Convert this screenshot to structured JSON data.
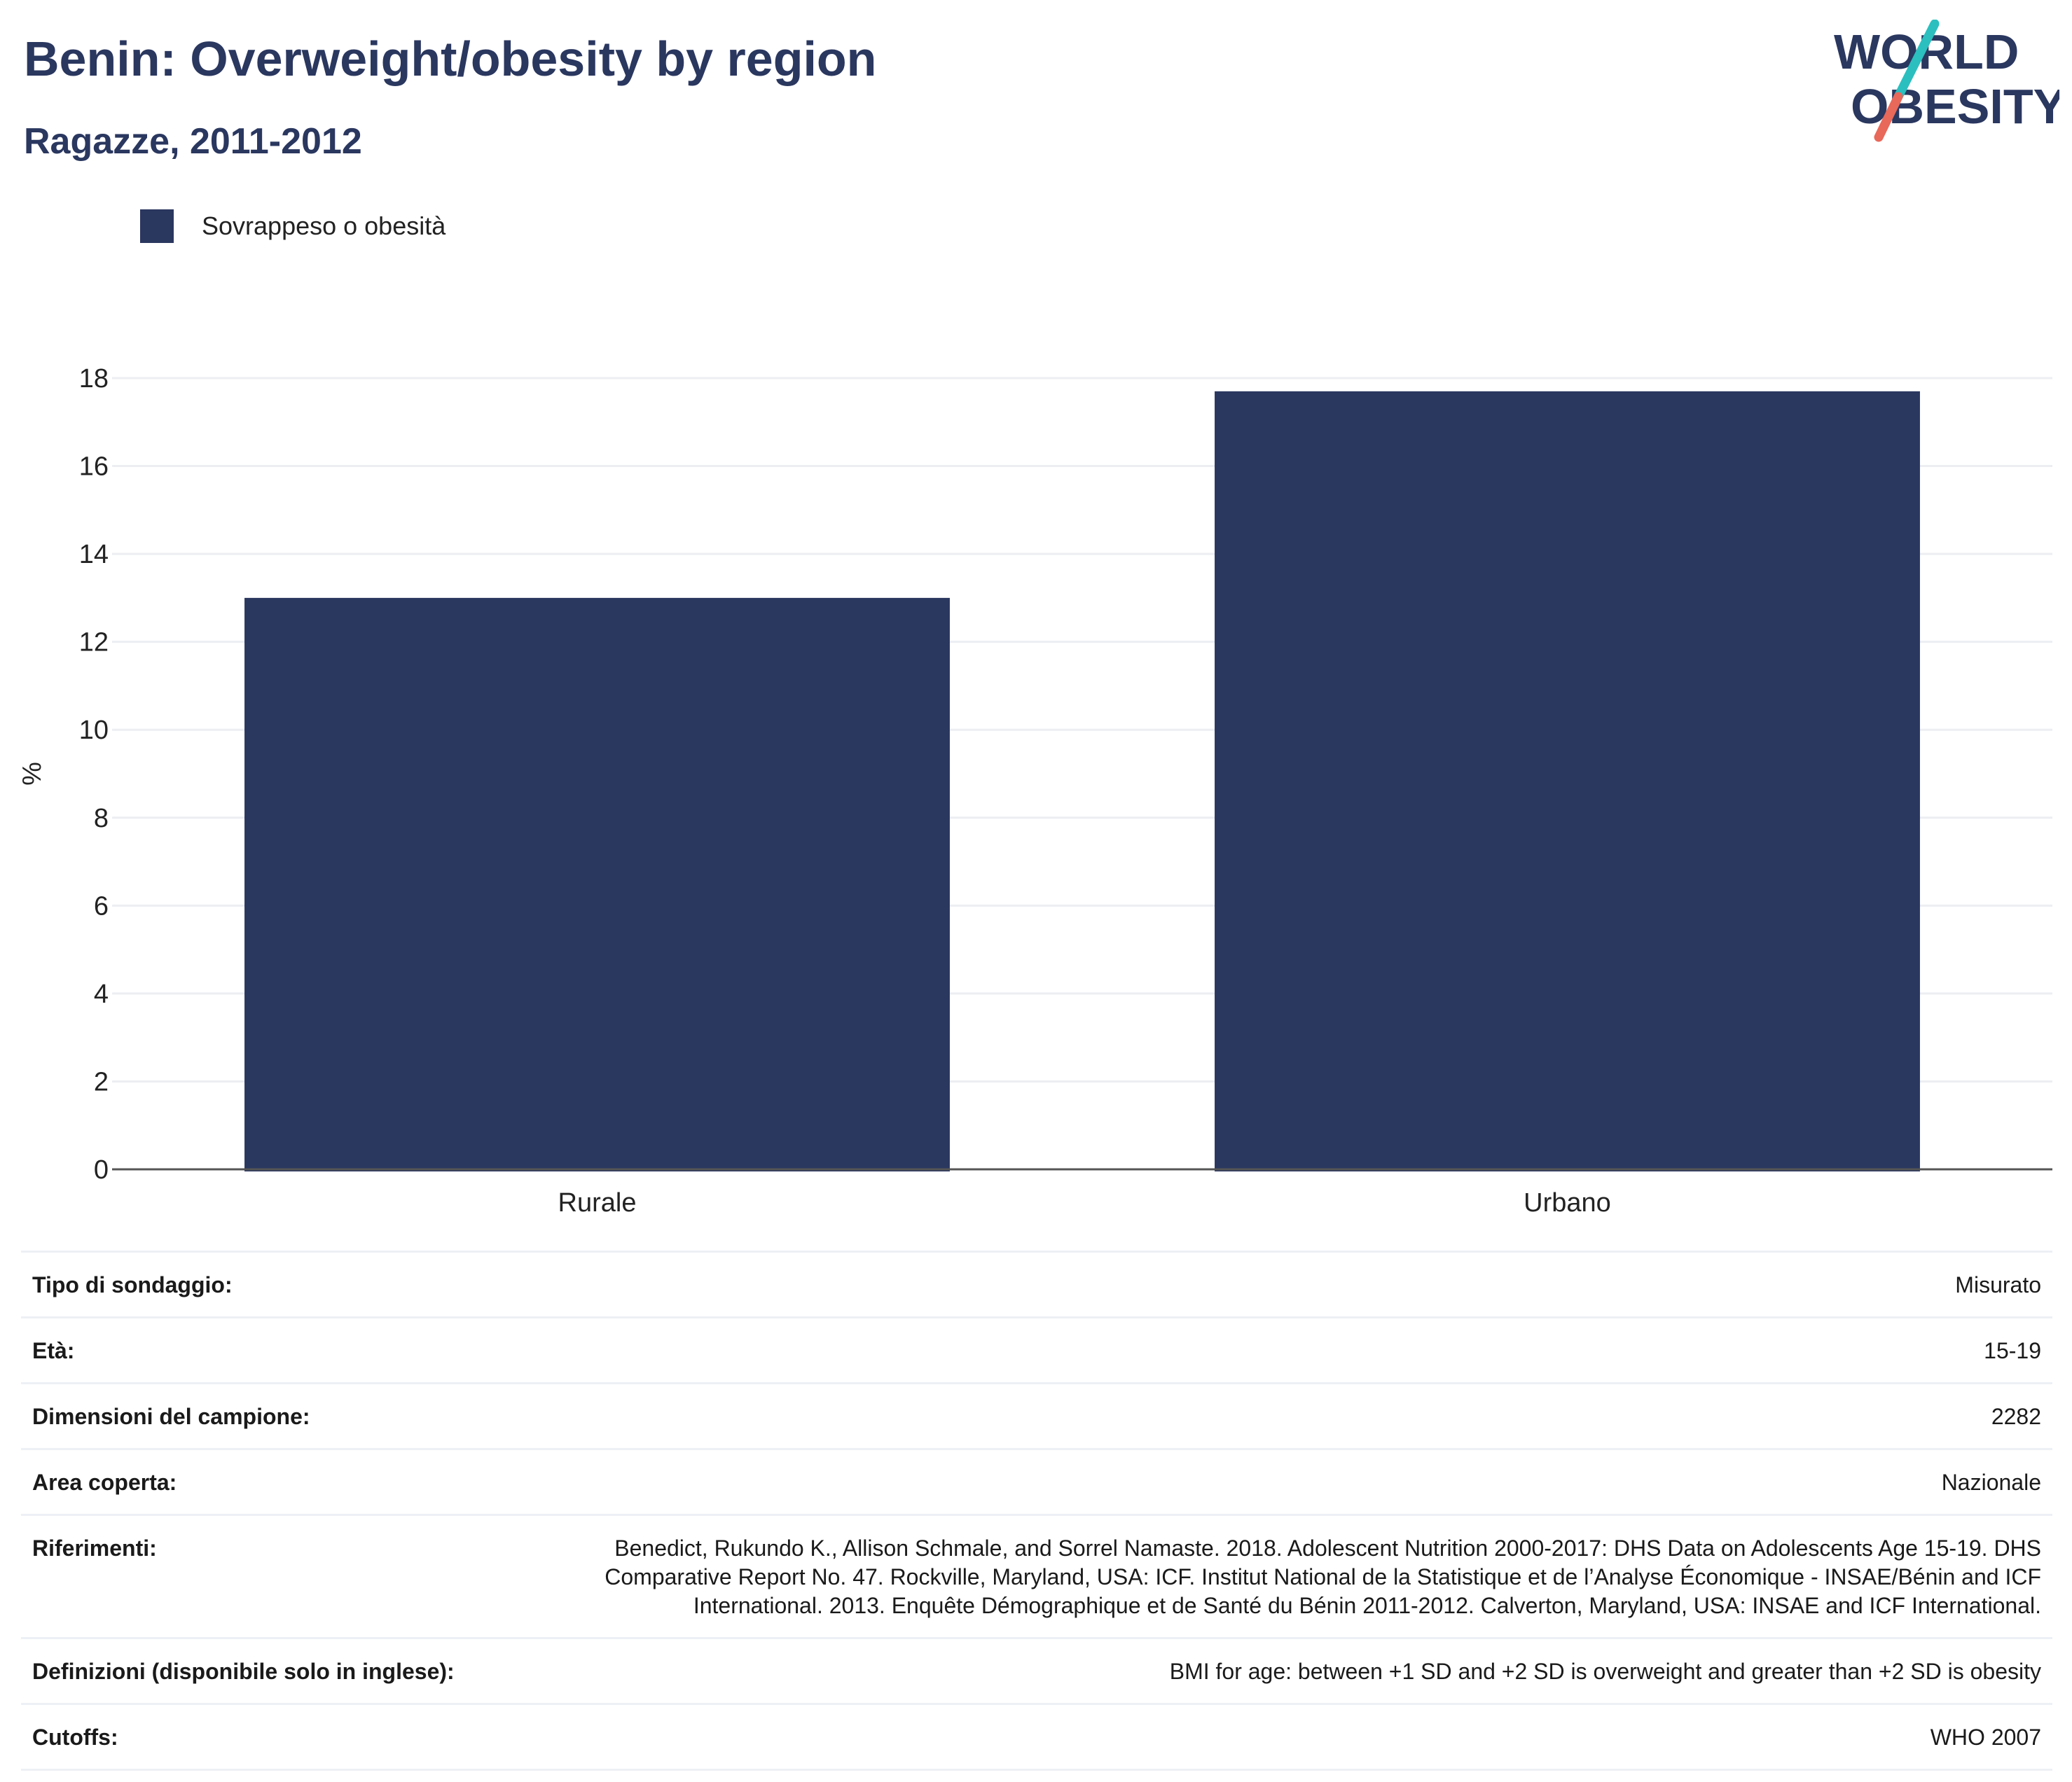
{
  "header": {
    "title": "Benin: Overweight/obesity by region",
    "subtitle": "Ragazze, 2011-2012"
  },
  "logo": {
    "line1": "WORLD",
    "line2": "OBESITY",
    "colors": {
      "text": "#2a375f",
      "slash_top": "#2bbfbf",
      "slash_bottom": "#e8685a"
    }
  },
  "colors": {
    "bar": "#2a375f",
    "grid": "#eceef2",
    "axis": "#555555",
    "tick_text": "#222222"
  },
  "chart_data": {
    "type": "bar",
    "categories": [
      "Rurale",
      "Urbano"
    ],
    "series": [
      {
        "name": "Sovrappeso o obesità",
        "values": [
          13.0,
          17.7
        ]
      }
    ],
    "ylabel": "%",
    "xlabel": "",
    "ylim": [
      0,
      18
    ],
    "yticks": [
      0,
      2,
      4,
      6,
      8,
      10,
      12,
      14,
      16,
      18
    ],
    "grid": true,
    "legend": "top-left"
  },
  "info": [
    {
      "label": "Tipo di sondaggio:",
      "value": "Misurato"
    },
    {
      "label": "Età:",
      "value": "15-19"
    },
    {
      "label": "Dimensioni del campione:",
      "value": "2282"
    },
    {
      "label": "Area coperta:",
      "value": "Nazionale"
    },
    {
      "label": "Riferimenti:",
      "value": "Benedict, Rukundo K., Allison Schmale, and Sorrel Namaste. 2018. Adolescent Nutrition 2000-2017: DHS Data on Adolescents Age 15-19. DHS Comparative Report No. 47. Rockville, Maryland, USA: ICF. Institut National de la Statistique et de l’Analyse Économique - INSAE/Bénin and ICF International. 2013. Enquête Démographique et de Santé du Bénin 2011-2012. Calverton, Maryland, USA: INSAE and ICF International."
    },
    {
      "label": "Definizioni (disponibile solo in inglese):",
      "value": "BMI for age: between +1 SD and +2 SD is overweight and greater than +2 SD is obesity"
    },
    {
      "label": "Cutoffs:",
      "value": "WHO 2007"
    }
  ]
}
